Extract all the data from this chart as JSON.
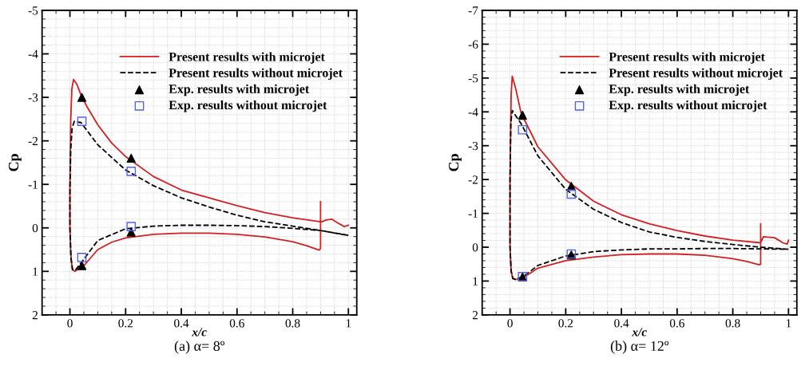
{
  "chart_data": [
    {
      "type": "line",
      "xlabel": "x/c",
      "ylabel": "Cp",
      "annotations": [
        "(a) α= 8º"
      ],
      "xlim": [
        -0.1,
        1.03
      ],
      "ylim": [
        2,
        -5
      ],
      "xticks": [
        0,
        0.2,
        0.4,
        0.6,
        0.8,
        1
      ],
      "yticks": [
        2,
        1,
        0,
        -1,
        -2,
        -3,
        -4,
        -5
      ],
      "grid": true,
      "legend": "top right",
      "series": [
        {
          "name": "Present results with microjet",
          "line_style": "solid",
          "marker": "none",
          "color": "#d42020",
          "x": [
            1.0,
            0.985,
            0.96,
            0.94,
            0.92,
            0.905,
            0.9,
            0.8,
            0.7,
            0.6,
            0.5,
            0.4,
            0.3,
            0.2,
            0.15,
            0.1,
            0.06,
            0.04,
            0.025,
            0.013,
            0.007,
            0.003,
            0.0,
            0.0,
            0.003,
            0.008,
            0.018,
            0.03,
            0.05,
            0.1,
            0.15,
            0.2,
            0.3,
            0.4,
            0.5,
            0.6,
            0.7,
            0.8,
            0.85,
            0.895,
            0.9,
            0.9
          ],
          "values": [
            -0.06,
            -0.03,
            -0.12,
            -0.2,
            -0.18,
            -0.14,
            -0.14,
            -0.23,
            -0.35,
            -0.51,
            -0.69,
            -0.87,
            -1.18,
            -1.64,
            -1.95,
            -2.37,
            -2.8,
            -3.05,
            -3.3,
            -3.41,
            -3.2,
            -2.5,
            -1.0,
            0.0,
            0.6,
            0.95,
            1.0,
            0.95,
            0.87,
            0.5,
            0.33,
            0.23,
            0.15,
            0.12,
            0.12,
            0.15,
            0.21,
            0.32,
            0.41,
            0.51,
            0.47,
            -0.6
          ]
        },
        {
          "name": "Present results without microjet",
          "line_style": "dashed",
          "marker": "none",
          "color": "#000000",
          "x": [
            1.0,
            0.9,
            0.8,
            0.7,
            0.6,
            0.5,
            0.4,
            0.3,
            0.2,
            0.1,
            0.04,
            0.016,
            0.008,
            0.003,
            0.0,
            0.0,
            0.004,
            0.01,
            0.02,
            0.05,
            0.1,
            0.2,
            0.3,
            0.4,
            0.5,
            0.6,
            0.7,
            0.8,
            0.9,
            0.995
          ],
          "values": [
            0.17,
            0.06,
            -0.04,
            -0.14,
            -0.29,
            -0.48,
            -0.69,
            -0.97,
            -1.33,
            -1.91,
            -2.42,
            -2.45,
            -2.3,
            -1.8,
            -0.8,
            0.0,
            0.7,
            0.97,
            0.97,
            0.72,
            0.29,
            0.02,
            -0.04,
            -0.06,
            -0.06,
            -0.05,
            -0.03,
            0.01,
            0.06,
            0.17
          ]
        },
        {
          "name": "Exp. results with microjet",
          "type": "scatter",
          "marker": "triangle",
          "color": "#000000",
          "x": [
            0.043,
            0.22,
            0.22,
            0.043
          ],
          "values": [
            -3.0,
            -1.6,
            0.1,
            0.87
          ]
        },
        {
          "name": "Exp. results without microjet",
          "type": "scatter",
          "marker": "square",
          "color": "#5060f0",
          "x": [
            0.043,
            0.22,
            0.22,
            0.043
          ],
          "values": [
            -2.45,
            -1.3,
            -0.03,
            0.68
          ]
        }
      ]
    },
    {
      "type": "line",
      "xlabel": "x/c",
      "ylabel": "Cp",
      "annotations": [
        "(b) α= 12º"
      ],
      "xlim": [
        -0.1,
        1.03
      ],
      "ylim": [
        2,
        -7
      ],
      "xticks": [
        0,
        0.2,
        0.4,
        0.6,
        0.8,
        1
      ],
      "yticks": [
        2,
        1,
        0,
        -1,
        -2,
        -3,
        -4,
        -5,
        -6,
        -7
      ],
      "grid": true,
      "legend": "top right",
      "series": [
        {
          "name": "Present results with microjet",
          "line_style": "solid",
          "marker": "none",
          "color": "#d42020",
          "x": [
            1.0,
            0.995,
            0.98,
            0.95,
            0.91,
            0.9,
            0.8,
            0.7,
            0.6,
            0.5,
            0.4,
            0.3,
            0.2,
            0.1,
            0.04,
            0.02,
            0.008,
            0.004,
            0.0,
            0.0,
            0.004,
            0.01,
            0.02,
            0.05,
            0.1,
            0.2,
            0.3,
            0.4,
            0.5,
            0.6,
            0.7,
            0.8,
            0.85,
            0.895,
            0.9,
            0.9
          ],
          "values": [
            -0.21,
            -0.09,
            -0.13,
            -0.28,
            -0.31,
            -0.13,
            -0.21,
            -0.33,
            -0.49,
            -0.69,
            -0.96,
            -1.36,
            -1.99,
            -2.97,
            -3.96,
            -4.7,
            -5.05,
            -4.5,
            -2.0,
            0.0,
            0.7,
            0.93,
            0.96,
            0.89,
            0.62,
            0.4,
            0.29,
            0.22,
            0.2,
            0.2,
            0.24,
            0.34,
            0.42,
            0.52,
            0.5,
            -0.69
          ]
        },
        {
          "name": "Present results without microjet",
          "line_style": "dashed",
          "marker": "none",
          "color": "#000000",
          "x": [
            1.0,
            0.9,
            0.8,
            0.7,
            0.6,
            0.5,
            0.4,
            0.3,
            0.2,
            0.1,
            0.04,
            0.015,
            0.008,
            0.003,
            0.0,
            0.0,
            0.004,
            0.01,
            0.02,
            0.05,
            0.1,
            0.2,
            0.3,
            0.4,
            0.5,
            0.6,
            0.7,
            0.8,
            0.9,
            0.995
          ],
          "values": [
            0.06,
            0.0,
            -0.08,
            -0.17,
            -0.29,
            -0.45,
            -0.73,
            -1.12,
            -1.71,
            -2.7,
            -3.65,
            -3.95,
            -4.04,
            -3.7,
            -2.0,
            0.0,
            0.7,
            0.92,
            0.95,
            0.85,
            0.54,
            0.26,
            0.13,
            0.08,
            0.05,
            0.05,
            0.04,
            0.04,
            0.05,
            0.06
          ]
        },
        {
          "name": "Exp. results with microjet",
          "type": "scatter",
          "marker": "triangle",
          "color": "#000000",
          "x": [
            0.045,
            0.22,
            0.22,
            0.045
          ],
          "values": [
            -3.9,
            -1.8,
            0.23,
            0.88
          ]
        },
        {
          "name": "Exp. results without microjet",
          "type": "scatter",
          "marker": "square",
          "color": "#5060f0",
          "x": [
            0.045,
            0.22,
            0.22,
            0.045
          ],
          "values": [
            -3.47,
            -1.57,
            0.2,
            0.87
          ]
        }
      ]
    }
  ]
}
